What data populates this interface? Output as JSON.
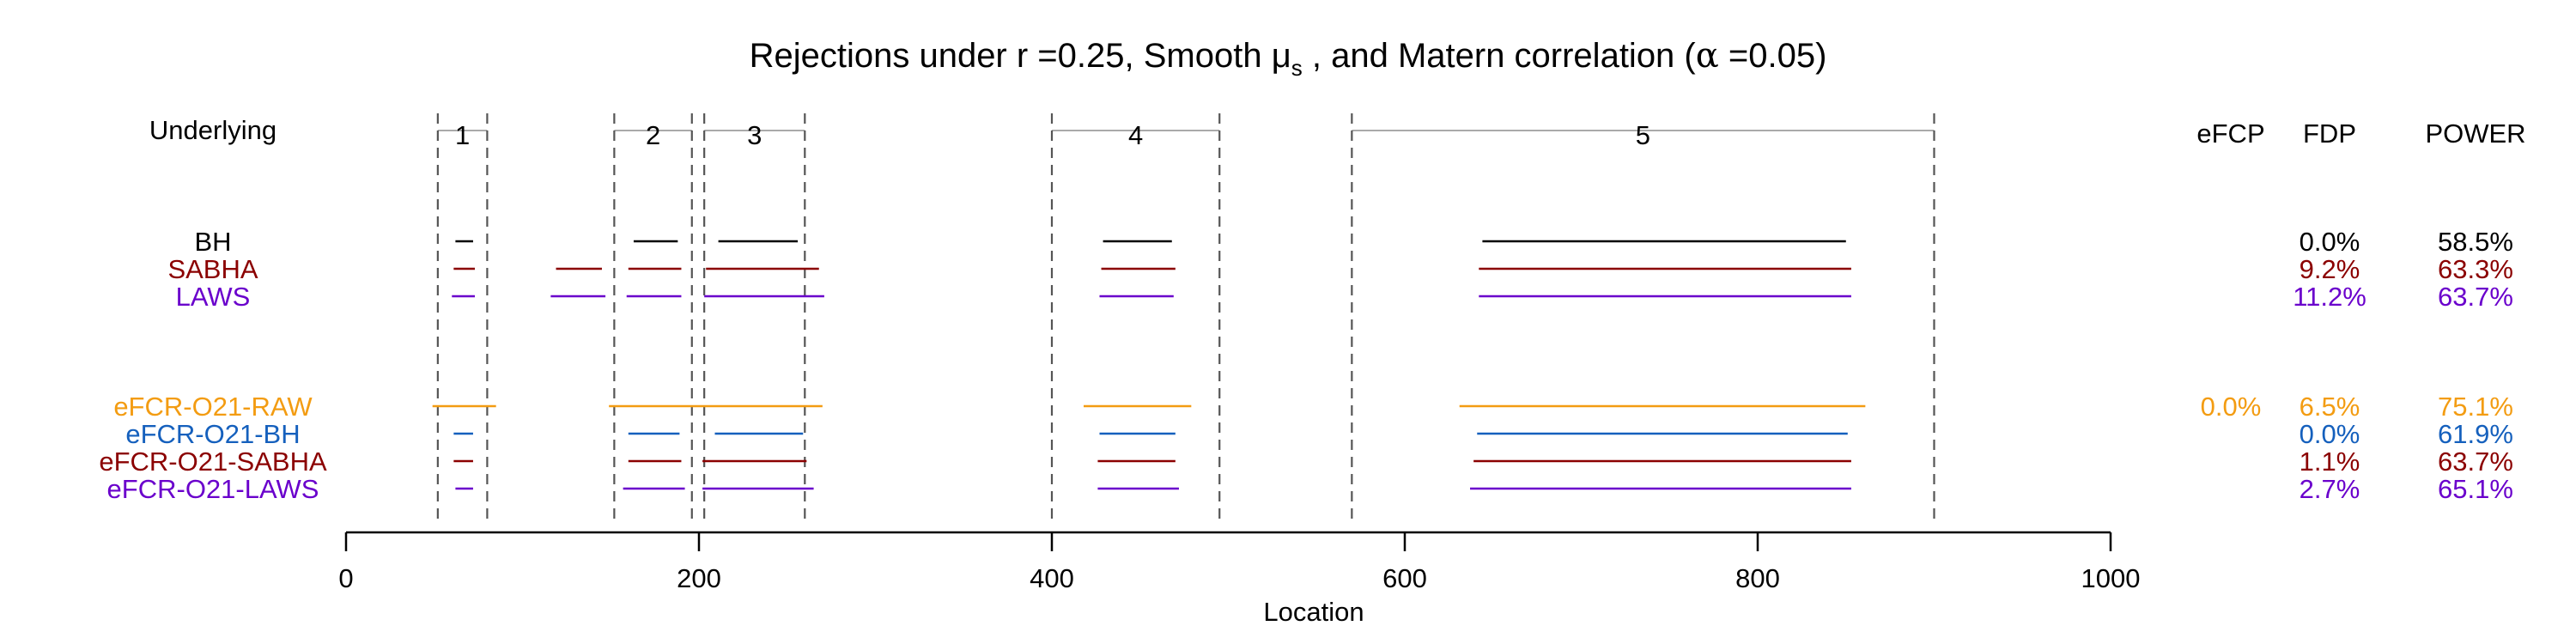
{
  "chart_data": {
    "type": "interval-plot",
    "title": "Rejections under  r =0.25,  Smooth μ",
    "title_sub": "s",
    "title_tail": " , and Matern correlation    (",
    "title_alpha": "α",
    "title_alpha_val": " =0.05)",
    "xlabel": "Location",
    "xlim": [
      0,
      1000
    ],
    "x_ticks": [
      0,
      200,
      400,
      600,
      800,
      1000
    ],
    "underlying_label": "Underlying",
    "underlying_regions": [
      {
        "label": "1",
        "start": 52,
        "end": 80
      },
      {
        "label": "2",
        "start": 152,
        "end": 196
      },
      {
        "label": "3",
        "start": 203,
        "end": 260
      },
      {
        "label": "4",
        "start": 400,
        "end": 495
      },
      {
        "label": "5",
        "start": 570,
        "end": 900
      }
    ],
    "column_headers": {
      "efcp": "eFCP",
      "fdp": "FDP",
      "power": "POWER"
    },
    "methods": [
      {
        "name": "BH",
        "color": "#000000",
        "efcp": "",
        "fdp": "0.0%",
        "power": "58.5%",
        "intervals": [
          [
            62,
            72
          ],
          [
            163,
            188
          ],
          [
            211,
            256
          ],
          [
            429,
            468
          ],
          [
            644,
            850
          ]
        ]
      },
      {
        "name": "SABHA",
        "color": "#8b0000",
        "efcp": "",
        "fdp": "9.2%",
        "power": "63.3%",
        "intervals": [
          [
            61,
            73
          ],
          [
            119,
            145
          ],
          [
            160,
            190
          ],
          [
            204,
            268
          ],
          [
            428,
            470
          ],
          [
            642,
            853
          ]
        ]
      },
      {
        "name": "LAWS",
        "color": "#6a00cc",
        "efcp": "",
        "fdp": "11.2%",
        "power": "63.7%",
        "intervals": [
          [
            60,
            73
          ],
          [
            116,
            147
          ],
          [
            159,
            190
          ],
          [
            203,
            271
          ],
          [
            427,
            469
          ],
          [
            642,
            853
          ]
        ]
      },
      {
        "name": "eFCR-O21-RAW",
        "color": "#f39c12",
        "efcp": "0.0%",
        "fdp": "6.5%",
        "power": "75.1%",
        "intervals": [
          [
            49,
            85
          ],
          [
            149,
            270
          ],
          [
            418,
            479
          ],
          [
            631,
            861
          ]
        ]
      },
      {
        "name": "eFCR-O21-BH",
        "color": "#1560bd",
        "efcp": "",
        "fdp": "0.0%",
        "power": "61.9%",
        "intervals": [
          [
            61,
            72
          ],
          [
            160,
            189
          ],
          [
            209,
            259
          ],
          [
            427,
            470
          ],
          [
            641,
            851
          ]
        ]
      },
      {
        "name": "eFCR-O21-SABHA",
        "color": "#8b0000",
        "efcp": "",
        "fdp": "1.1%",
        "power": "63.7%",
        "intervals": [
          [
            61,
            72
          ],
          [
            160,
            190
          ],
          [
            202,
            261
          ],
          [
            426,
            470
          ],
          [
            639,
            853
          ]
        ]
      },
      {
        "name": "eFCR-O21-LAWS",
        "color": "#6a00cc",
        "efcp": "",
        "fdp": "2.7%",
        "power": "65.1%",
        "intervals": [
          [
            62,
            72
          ],
          [
            157,
            192
          ],
          [
            202,
            265
          ],
          [
            426,
            472
          ],
          [
            637,
            853
          ]
        ]
      }
    ]
  }
}
